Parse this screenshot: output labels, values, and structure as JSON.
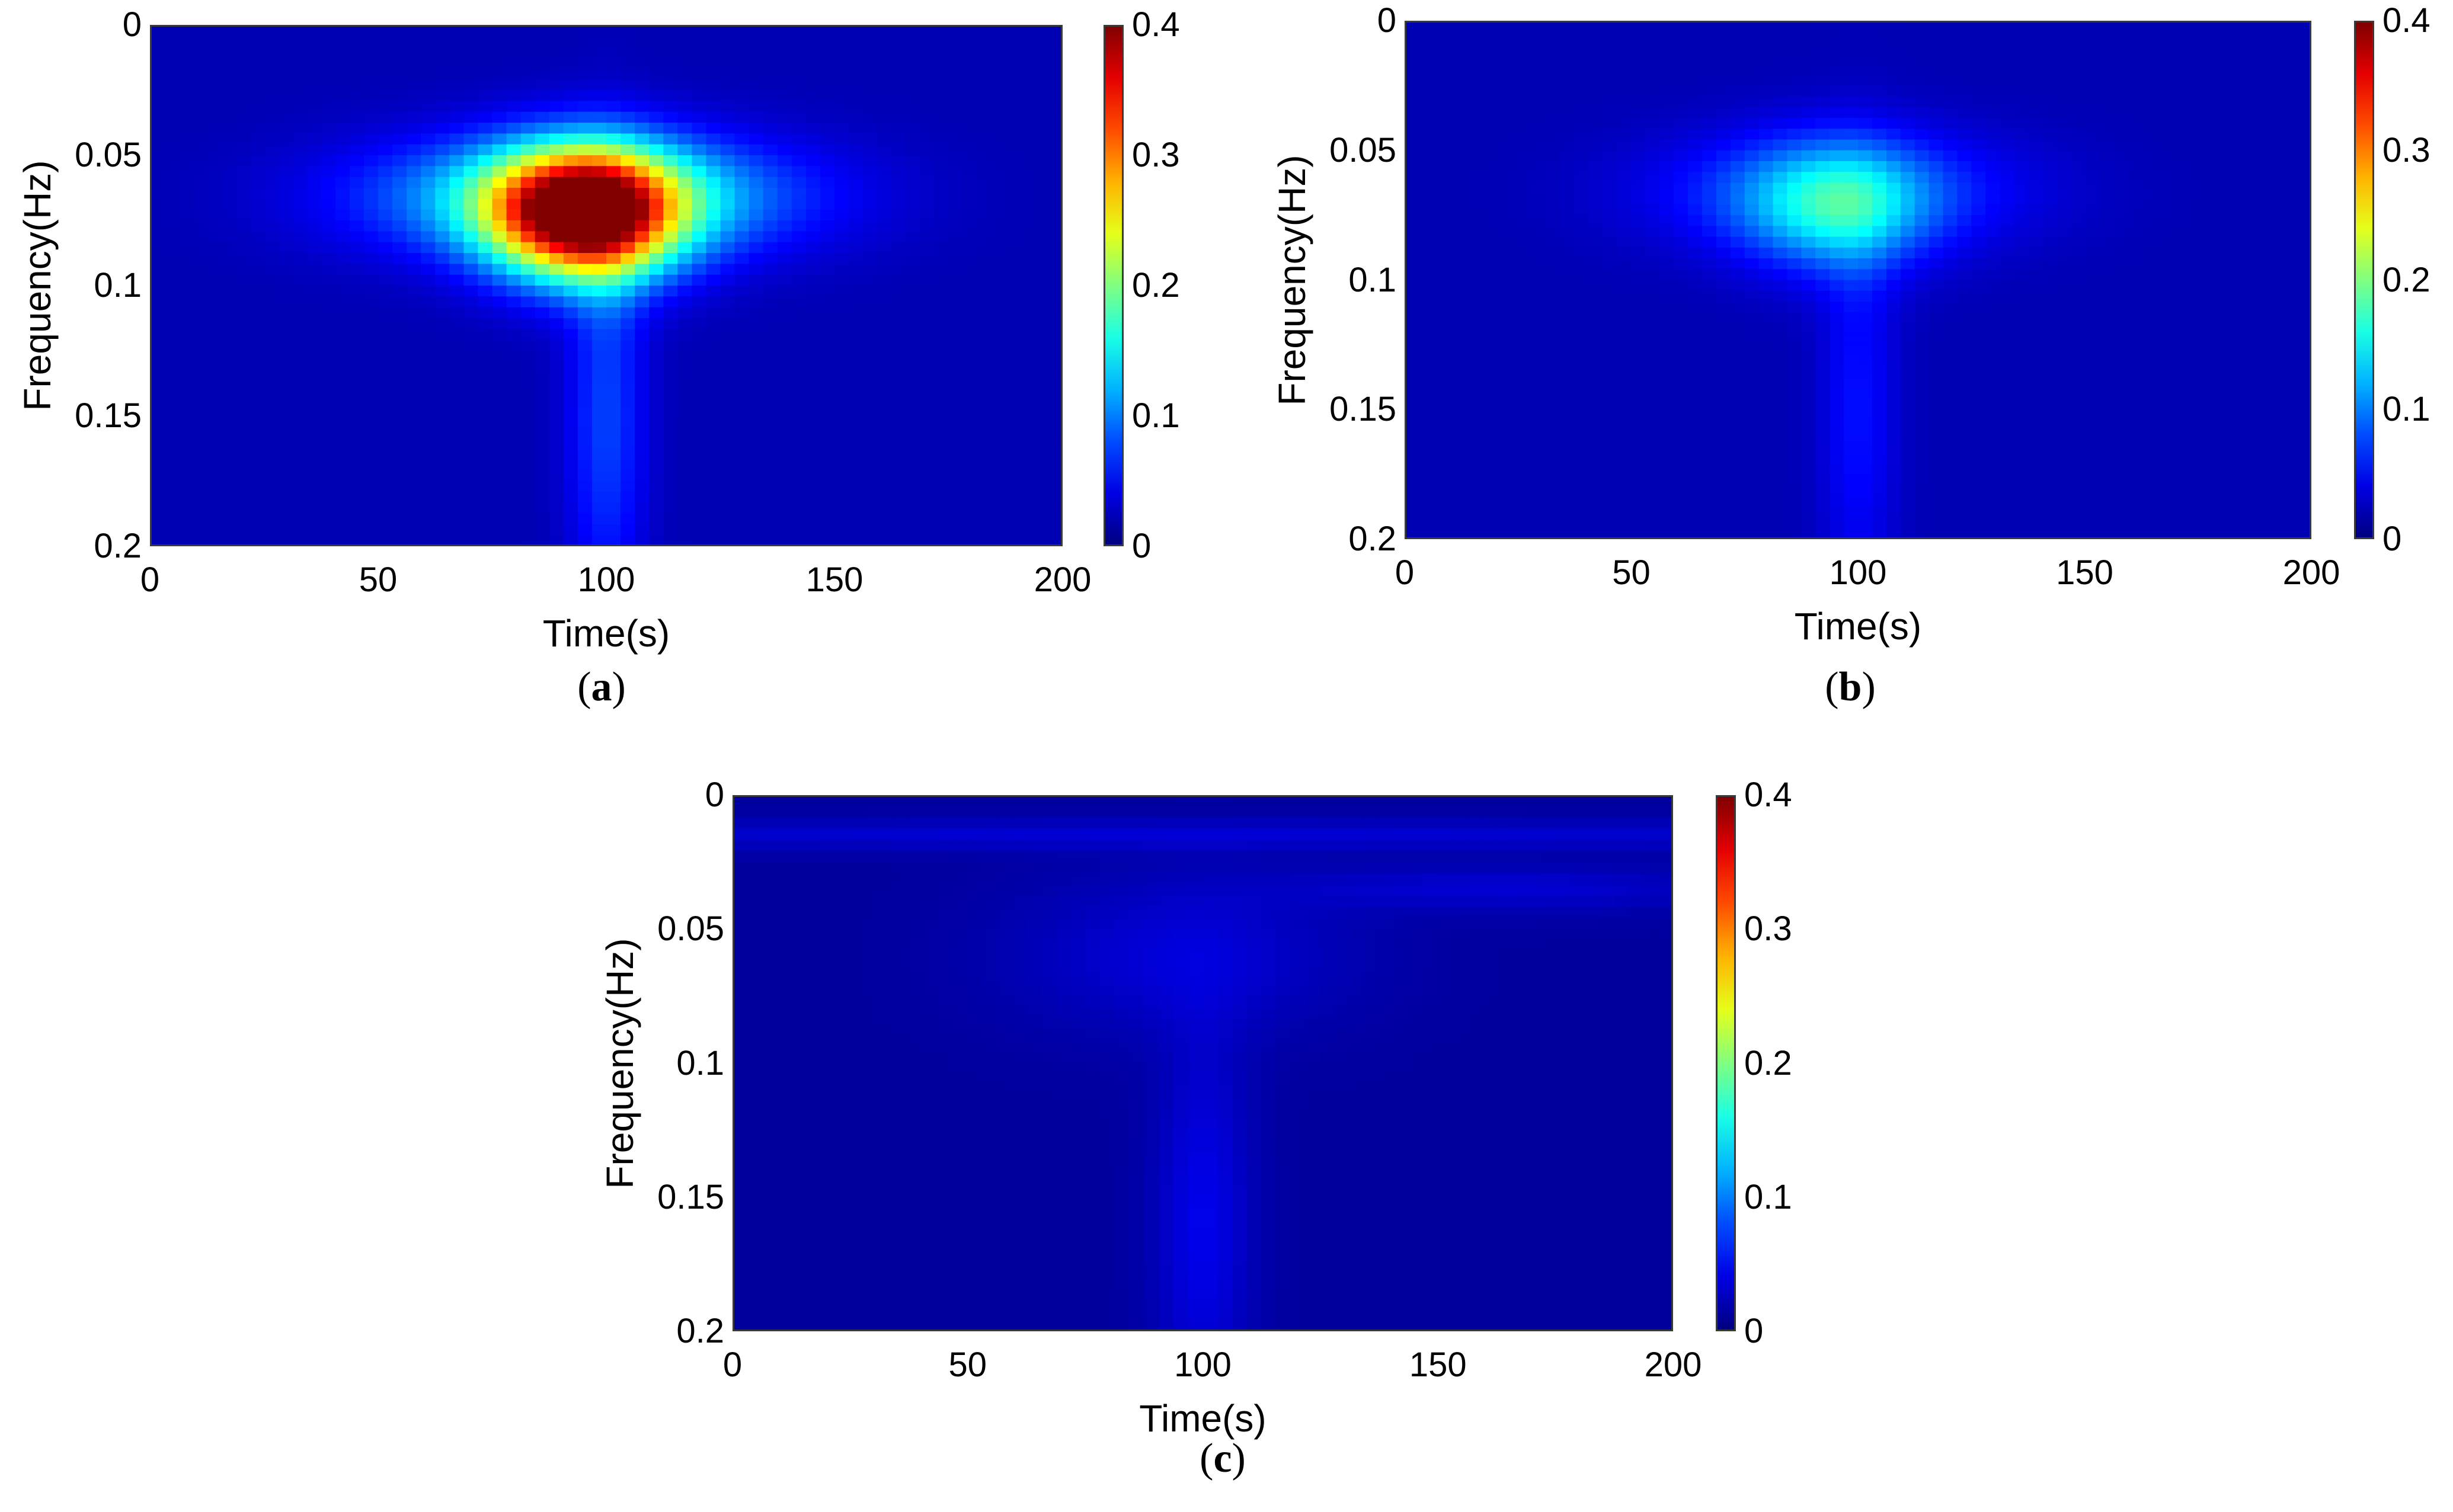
{
  "chart_data": [
    {
      "type": "heatmap",
      "panel_label": "a",
      "xlabel": "Time(s)",
      "ylabel": "Frequency(Hz)",
      "xlim": [
        0,
        200
      ],
      "ylim": [
        0,
        0.2
      ],
      "y_axis_direction": "downward",
      "x_ticks": [
        "0",
        "50",
        "100",
        "150",
        "200"
      ],
      "y_ticks": [
        "0",
        "0.05",
        "0.1",
        "0.15",
        "0.2"
      ],
      "colorbar": {
        "range": [
          0,
          0.4
        ],
        "ticks": [
          "0",
          "0.1",
          "0.2",
          "0.3",
          "0.4"
        ],
        "colormap": "jet"
      },
      "peak": {
        "time": 95,
        "frequency": 0.073,
        "value": 0.37
      },
      "features": [
        {
          "time": 95,
          "frequency": 0.073,
          "value": 0.37,
          "spread_time": 14,
          "spread_freq": 0.017
        },
        {
          "time": 95,
          "frequency": 0.066,
          "value": 0.14,
          "spread_time": 32,
          "spread_freq": 0.016
        },
        {
          "time": 100,
          "frequency": 0.15,
          "value": 0.055,
          "spread_time": 6,
          "spread_freq": 0.055
        }
      ],
      "background_value": 0.02
    },
    {
      "type": "heatmap",
      "panel_label": "b",
      "xlabel": "Time(s)",
      "ylabel": "Frequency(Hz)",
      "xlim": [
        0,
        200
      ],
      "ylim": [
        0,
        0.2
      ],
      "y_axis_direction": "downward",
      "x_ticks": [
        "0",
        "50",
        "100",
        "150",
        "200"
      ],
      "y_ticks": [
        "0",
        "0.05",
        "0.1",
        "0.15",
        "0.2"
      ],
      "colorbar": {
        "range": [
          0,
          0.4
        ],
        "ticks": [
          "0",
          "0.1",
          "0.2",
          "0.3",
          "0.4"
        ],
        "colormap": "jet"
      },
      "peak": {
        "time": 95,
        "frequency": 0.072,
        "value": 0.14
      },
      "features": [
        {
          "time": 95,
          "frequency": 0.072,
          "value": 0.1,
          "spread_time": 14,
          "spread_freq": 0.017
        },
        {
          "time": 95,
          "frequency": 0.066,
          "value": 0.06,
          "spread_time": 28,
          "spread_freq": 0.016
        },
        {
          "time": 100,
          "frequency": 0.15,
          "value": 0.035,
          "spread_time": 6,
          "spread_freq": 0.055
        }
      ],
      "background_value": 0.02
    },
    {
      "type": "heatmap",
      "panel_label": "c",
      "xlabel": "Time(s)",
      "ylabel": "Frequency(Hz)",
      "xlim": [
        0,
        200
      ],
      "ylim": [
        0,
        0.2
      ],
      "y_axis_direction": "downward",
      "x_ticks": [
        "0",
        "50",
        "100",
        "150",
        "200"
      ],
      "y_ticks": [
        "0",
        "0.05",
        "0.1",
        "0.15",
        "0.2"
      ],
      "colorbar": {
        "range": [
          0,
          0.4
        ],
        "ticks": [
          "0",
          "0.1",
          "0.2",
          "0.3",
          "0.4"
        ],
        "colormap": "jet"
      },
      "peak": {
        "time": 100,
        "frequency": 0.2,
        "value": 0.05
      },
      "features": [
        {
          "time": 95,
          "frequency": 0.06,
          "value": 0.022,
          "spread_time": 25,
          "spread_freq": 0.02
        },
        {
          "time": 165,
          "frequency": 0.035,
          "value": 0.02,
          "spread_time": 35,
          "spread_freq": 0.006
        },
        {
          "time": 100,
          "frequency": 0.16,
          "value": 0.03,
          "spread_time": 7,
          "spread_freq": 0.05
        },
        {
          "time": 100,
          "frequency": 0.015,
          "value": 0.02,
          "spread_time": 200,
          "spread_freq": 0.004
        }
      ],
      "background_value": 0.012
    }
  ]
}
